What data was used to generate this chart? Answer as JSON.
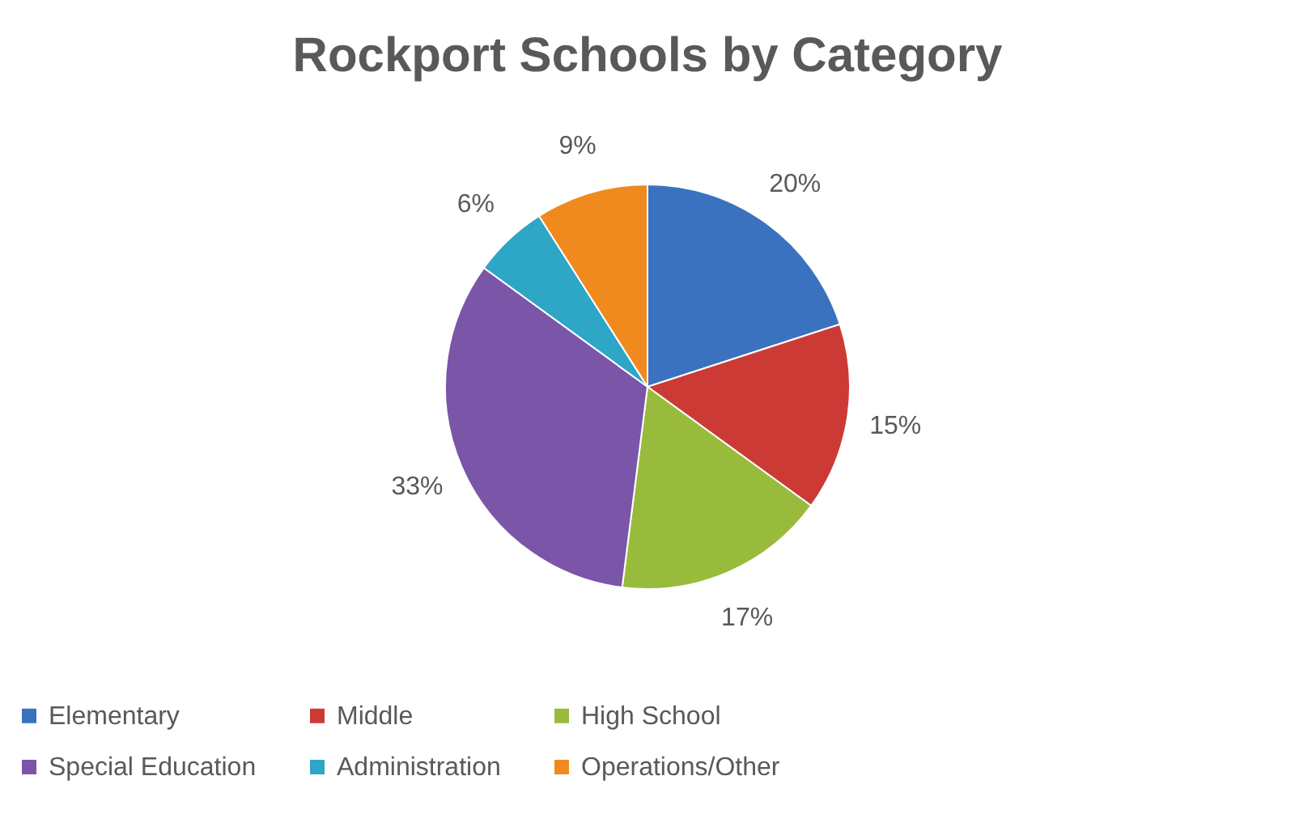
{
  "chart_data": {
    "type": "pie",
    "title": "Rockport Schools by Category",
    "categories": [
      "Elementary",
      "Middle",
      "High School",
      "Special Education",
      "Administration",
      "Operations/Other"
    ],
    "values": [
      20,
      15,
      17,
      33,
      6,
      9
    ],
    "value_labels": [
      "20%",
      "15%",
      "17%",
      "33%",
      "6%",
      "9%"
    ],
    "colors": [
      "#3b72c0",
      "#cc3a36",
      "#98bb3c",
      "#7a55a8",
      "#2ea6c6",
      "#f08a1e"
    ],
    "legend": "bottom"
  }
}
